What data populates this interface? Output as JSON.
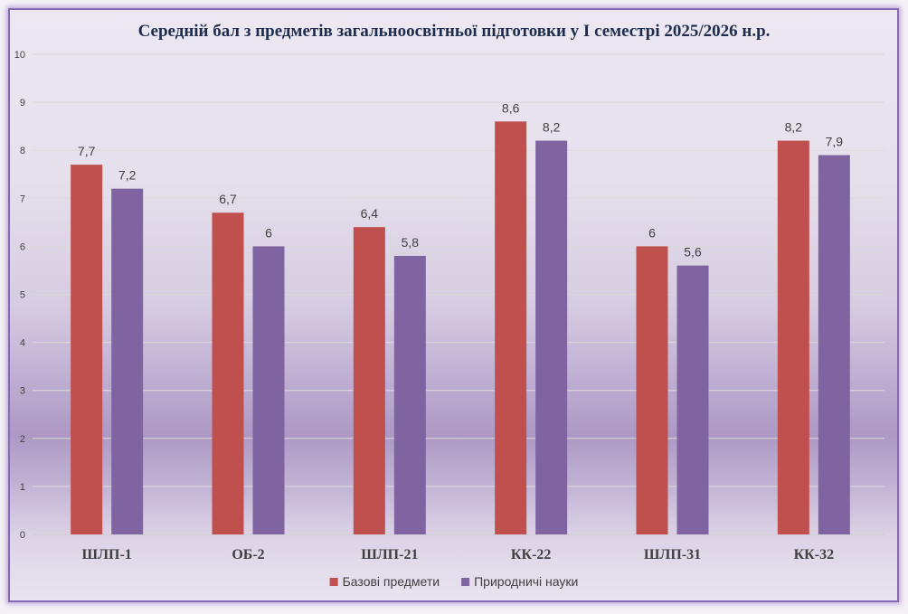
{
  "chart_data": {
    "type": "bar",
    "title": "Середній бал з предметів загальноосвітньої підготовки у І семестрі 2025/2026 н.р.",
    "categories": [
      "ШЛП-1",
      "ОБ-2",
      "ШЛП-21",
      "КК-22",
      "ШЛП-31",
      "КК-32"
    ],
    "series": [
      {
        "name": "Базові предмети",
        "color": "#c0504d",
        "values": [
          7.7,
          6.7,
          6.4,
          8.6,
          6,
          8.2
        ]
      },
      {
        "name": "Природничі науки",
        "color": "#8064a2",
        "values": [
          7.2,
          6,
          5.8,
          8.2,
          5.6,
          7.9
        ]
      }
    ],
    "ylim": [
      0,
      10
    ],
    "yticks": [
      0,
      1,
      2,
      3,
      4,
      5,
      6,
      7,
      8,
      9,
      10
    ],
    "grid": true,
    "data_labels": true,
    "legend": "bottom"
  }
}
